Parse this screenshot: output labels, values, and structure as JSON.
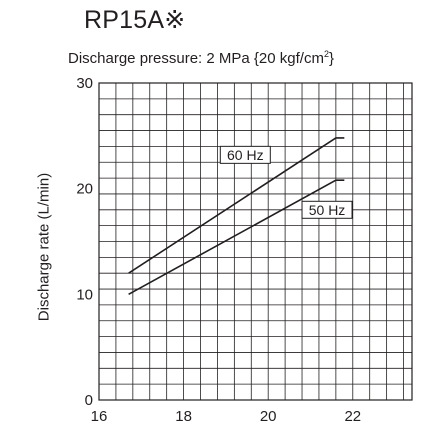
{
  "chart_data": {
    "type": "line",
    "title": "RP15A※",
    "subtitle": "Discharge pressure: 2 MPa {20 kgf/cm",
    "subtitle_sup": "2",
    "subtitle_end": "}",
    "xlabel": "",
    "ylabel": "Discharge rate (L/min)",
    "xlim": [
      16,
      23.4
    ],
    "ylim": [
      0,
      30
    ],
    "x_ticks": [
      16,
      18,
      20,
      22
    ],
    "y_ticks": [
      0,
      10,
      20,
      30
    ],
    "grid": true,
    "series": [
      {
        "name": "60 Hz",
        "x": [
          16.7,
          21.6,
          21.8
        ],
        "y": [
          12.0,
          24.8,
          24.8
        ]
      },
      {
        "name": "50 Hz",
        "x": [
          16.7,
          21.6,
          21.8
        ],
        "y": [
          10.0,
          20.8,
          20.8
        ]
      }
    ]
  }
}
